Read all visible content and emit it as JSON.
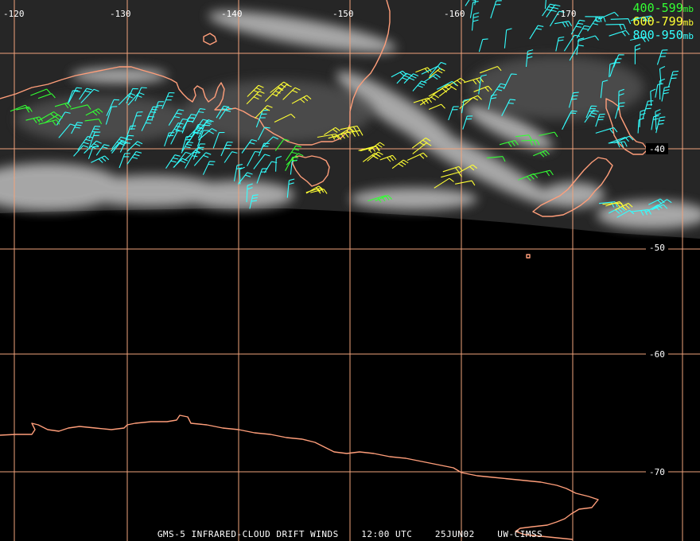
{
  "map": {
    "longitude_labels": [
      "-120",
      "-130",
      "-140",
      "-150",
      "-160",
      "-170"
    ],
    "latitude_labels": [
      "-40",
      "-50",
      "-60",
      "-70"
    ],
    "colors": {
      "grid": "#f0a37c",
      "coast": "#ff9e7a",
      "band_400_599": "#33ff33",
      "band_600_799": "#ffff33",
      "band_800_950": "#33ffff",
      "text": "#ffffff",
      "background": "#000000"
    }
  },
  "legend": [
    {
      "range": "400-599",
      "unit": "mb",
      "color": "#33ff33"
    },
    {
      "range": "600-799",
      "unit": "mb",
      "color": "#ffff33"
    },
    {
      "range": "800-950",
      "unit": "mb",
      "color": "#33ffff"
    }
  ],
  "caption": {
    "product": "GMS-5 INFRARED-CLOUD DRIFT WINDS",
    "time": "12:00 UTC",
    "date": "25JUN02",
    "source": "UW-CIMSS"
  }
}
